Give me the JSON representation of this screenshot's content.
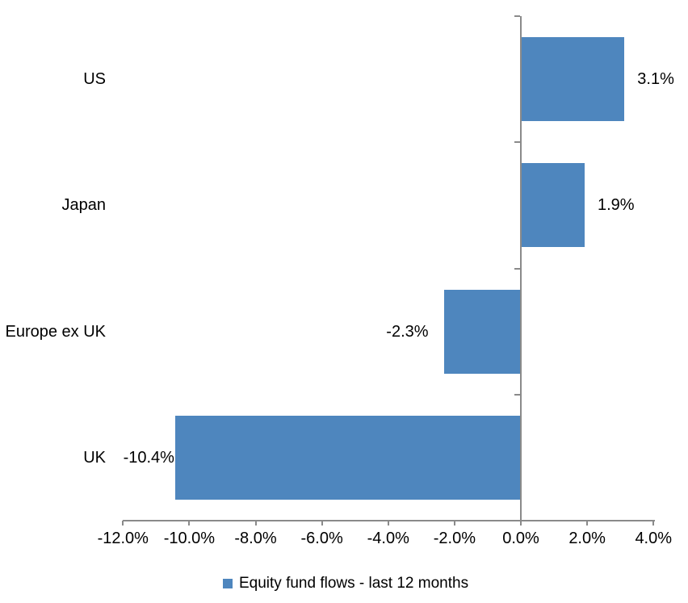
{
  "chart_data": {
    "type": "bar",
    "orientation": "horizontal",
    "categories": [
      "US",
      "Japan",
      "Europe ex UK",
      "UK"
    ],
    "series": [
      {
        "name": "Equity fund flows - last 12 months",
        "values": [
          3.1,
          1.9,
          -2.3,
          -10.4
        ],
        "labels": [
          "3.1%",
          "1.9%",
          "-2.3%",
          "-10.4%"
        ],
        "color": "#4E86BE"
      }
    ],
    "xlim": [
      -12,
      4
    ],
    "x_ticks": [
      -12,
      -10,
      -8,
      -6,
      -4,
      -2,
      0,
      2,
      4
    ],
    "x_tick_labels": [
      "-12.0%",
      "-10.0%",
      "-8.0%",
      "-6.0%",
      "-4.0%",
      "-2.0%",
      "0.0%",
      "2.0%",
      "4.0%"
    ],
    "grid": false,
    "legend_position": "bottom",
    "axis_color": "#8A8A8A",
    "text_color": "#000000",
    "background": "#FFFFFF"
  }
}
